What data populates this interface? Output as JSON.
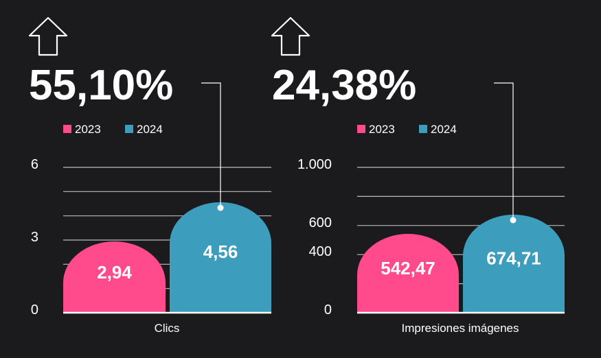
{
  "colors": {
    "background": "#1b1b1d",
    "series_2023": "#ff4b8c",
    "series_2024": "#3d9dbc",
    "text": "#ffffff",
    "grid": "#bdbdbd"
  },
  "panels": [
    {
      "icon": "arrow-up-icon",
      "headline": "55,10%",
      "legend": [
        {
          "label": "2023",
          "color": "#ff4b8c"
        },
        {
          "label": "2024",
          "color": "#3d9dbc"
        }
      ]
    },
    {
      "icon": "arrow-up-icon",
      "headline": "24,38%",
      "legend": [
        {
          "label": "2023",
          "color": "#ff4b8c"
        },
        {
          "label": "2024",
          "color": "#3d9dbc"
        }
      ]
    }
  ],
  "chart_data": [
    {
      "type": "bar",
      "title": "",
      "xlabel": "Clics",
      "ylabel": "",
      "categories": [
        "2023",
        "2024"
      ],
      "values": [
        2.94,
        4.56
      ],
      "value_labels": [
        "2,94",
        "4,56"
      ],
      "ylim": [
        0,
        6
      ],
      "yticks": [
        {
          "label": "0",
          "value": 0
        },
        {
          "label": "3",
          "value": 3
        },
        {
          "label": "6",
          "value": 6
        }
      ],
      "gridlines": [
        0,
        1,
        2,
        3,
        4,
        5,
        6
      ],
      "grid": true,
      "legend": "top-left"
    },
    {
      "type": "bar",
      "title": "",
      "xlabel": "Impresiones imágenes",
      "ylabel": "",
      "categories": [
        "2023",
        "2024"
      ],
      "values": [
        542.47,
        674.71
      ],
      "value_labels": [
        "542,47",
        "674,71"
      ],
      "ylim": [
        0,
        1000
      ],
      "yticks": [
        {
          "label": "0",
          "value": 0
        },
        {
          "label": "400",
          "value": 400
        },
        {
          "label": "600",
          "value": 600
        },
        {
          "label": "1.000",
          "value": 1000
        }
      ],
      "gridlines": [
        0,
        200,
        400,
        600,
        800,
        1000
      ],
      "grid": true,
      "legend": "top-left"
    }
  ]
}
